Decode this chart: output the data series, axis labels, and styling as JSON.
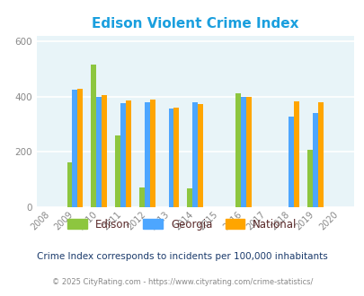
{
  "title": "Edison Violent Crime Index",
  "years": [
    2008,
    2009,
    2010,
    2011,
    2012,
    2013,
    2014,
    2015,
    2016,
    2017,
    2018,
    2019,
    2020
  ],
  "data": {
    "Edison": [
      null,
      163,
      515,
      260,
      70,
      null,
      68,
      null,
      410,
      null,
      null,
      208,
      null
    ],
    "Georgia": [
      null,
      425,
      400,
      375,
      378,
      355,
      378,
      null,
      398,
      null,
      328,
      340,
      null
    ],
    "National": [
      null,
      428,
      405,
      385,
      388,
      360,
      372,
      null,
      398,
      null,
      382,
      379,
      null
    ]
  },
  "colors": {
    "Edison": "#8dc63f",
    "Georgia": "#4da6ff",
    "National": "#ffa500"
  },
  "ylim": [
    0,
    620
  ],
  "yticks": [
    0,
    200,
    400,
    600
  ],
  "plot_bg": "#e8f4f8",
  "title_color": "#1a9fde",
  "legend_text_color": "#5a2a2a",
  "subtitle": "Crime Index corresponds to incidents per 100,000 inhabitants",
  "footer": "© 2025 CityRating.com - https://www.cityrating.com/crime-statistics/",
  "subtitle_color": "#1a3a6b",
  "footer_color": "#888888",
  "bar_width": 0.22,
  "grid_color": "#ffffff"
}
